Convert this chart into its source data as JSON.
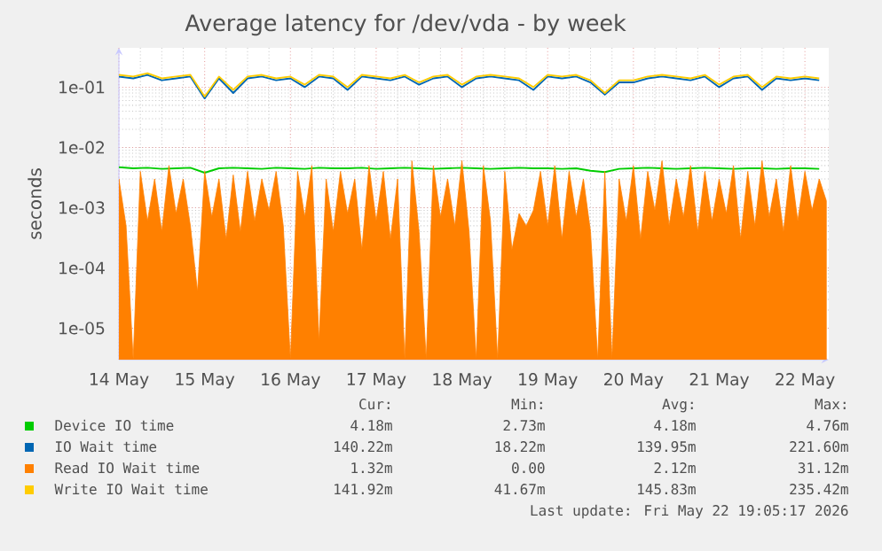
{
  "chart_data": {
    "type": "line",
    "title": "Average latency for /dev/vda - by week",
    "ylabel": "seconds",
    "log": "y",
    "grid": true,
    "legend": "bottom",
    "xlim": [
      "2026-05-14",
      "2026-05-22T06:40"
    ],
    "ylim": [
      3e-06,
      0.45
    ],
    "xticks": [
      {
        "value": "2026-05-14",
        "label": "14 May"
      },
      {
        "value": "2026-05-15",
        "label": "15 May"
      },
      {
        "value": "2026-05-16",
        "label": "16 May"
      },
      {
        "value": "2026-05-17",
        "label": "17 May"
      },
      {
        "value": "2026-05-18",
        "label": "18 May"
      },
      {
        "value": "2026-05-19",
        "label": "19 May"
      },
      {
        "value": "2026-05-20",
        "label": "20 May"
      },
      {
        "value": "2026-05-21",
        "label": "21 May"
      },
      {
        "value": "2026-05-22",
        "label": "22 May"
      }
    ],
    "yticks": [
      {
        "value": 1e-05,
        "label": "1e-05"
      },
      {
        "value": 0.0001,
        "label": "1e-04"
      },
      {
        "value": 0.001,
        "label": "1e-03"
      },
      {
        "value": 0.01,
        "label": "1e-02"
      },
      {
        "value": 0.1,
        "label": "1e-01"
      }
    ],
    "series": [
      {
        "name": "Device IO time",
        "color": "#00cc00",
        "x": [
          "2026-05-14T00:00",
          "2026-05-14T04:00",
          "2026-05-14T08:00",
          "2026-05-14T12:00",
          "2026-05-14T16:00",
          "2026-05-14T20:00",
          "2026-05-15T00:00",
          "2026-05-15T04:00",
          "2026-05-15T08:00",
          "2026-05-15T12:00",
          "2026-05-15T16:00",
          "2026-05-15T20:00",
          "2026-05-16T00:00",
          "2026-05-16T04:00",
          "2026-05-16T08:00",
          "2026-05-16T12:00",
          "2026-05-16T16:00",
          "2026-05-16T20:00",
          "2026-05-17T00:00",
          "2026-05-17T04:00",
          "2026-05-17T08:00",
          "2026-05-17T12:00",
          "2026-05-17T16:00",
          "2026-05-17T20:00",
          "2026-05-18T00:00",
          "2026-05-18T04:00",
          "2026-05-18T08:00",
          "2026-05-18T12:00",
          "2026-05-18T16:00",
          "2026-05-18T20:00",
          "2026-05-19T00:00",
          "2026-05-19T04:00",
          "2026-05-19T08:00",
          "2026-05-19T12:00",
          "2026-05-19T16:00",
          "2026-05-19T20:00",
          "2026-05-20T00:00",
          "2026-05-20T04:00",
          "2026-05-20T08:00",
          "2026-05-20T12:00",
          "2026-05-20T16:00",
          "2026-05-20T20:00",
          "2026-05-21T00:00",
          "2026-05-21T04:00",
          "2026-05-21T08:00",
          "2026-05-21T12:00",
          "2026-05-21T16:00",
          "2026-05-21T20:00",
          "2026-05-22T00:00",
          "2026-05-22T04:00"
        ],
        "values": [
          0.0047,
          0.0045,
          0.0046,
          0.0044,
          0.0045,
          0.0046,
          0.0038,
          0.0045,
          0.0046,
          0.0045,
          0.0044,
          0.0046,
          0.0045,
          0.0044,
          0.0046,
          0.0045,
          0.0045,
          0.0046,
          0.0044,
          0.0045,
          0.0046,
          0.0045,
          0.0044,
          0.0045,
          0.0046,
          0.0045,
          0.0044,
          0.0045,
          0.0046,
          0.0045,
          0.0045,
          0.0044,
          0.0045,
          0.0041,
          0.0039,
          0.0044,
          0.0045,
          0.0046,
          0.0045,
          0.0044,
          0.0045,
          0.0046,
          0.0045,
          0.0044,
          0.0045,
          0.0045,
          0.0044,
          0.0045,
          0.0045,
          0.0044
        ]
      },
      {
        "name": "IO Wait time",
        "color": "#0066b3",
        "x": [
          "2026-05-14T00:00",
          "2026-05-14T04:00",
          "2026-05-14T08:00",
          "2026-05-14T12:00",
          "2026-05-14T16:00",
          "2026-05-14T20:00",
          "2026-05-15T00:00",
          "2026-05-15T04:00",
          "2026-05-15T08:00",
          "2026-05-15T12:00",
          "2026-05-15T16:00",
          "2026-05-15T20:00",
          "2026-05-16T00:00",
          "2026-05-16T04:00",
          "2026-05-16T08:00",
          "2026-05-16T12:00",
          "2026-05-16T16:00",
          "2026-05-16T20:00",
          "2026-05-17T00:00",
          "2026-05-17T04:00",
          "2026-05-17T08:00",
          "2026-05-17T12:00",
          "2026-05-17T16:00",
          "2026-05-17T20:00",
          "2026-05-18T00:00",
          "2026-05-18T04:00",
          "2026-05-18T08:00",
          "2026-05-18T12:00",
          "2026-05-18T16:00",
          "2026-05-18T20:00",
          "2026-05-19T00:00",
          "2026-05-19T04:00",
          "2026-05-19T08:00",
          "2026-05-19T12:00",
          "2026-05-19T16:00",
          "2026-05-19T20:00",
          "2026-05-20T00:00",
          "2026-05-20T04:00",
          "2026-05-20T08:00",
          "2026-05-20T12:00",
          "2026-05-20T16:00",
          "2026-05-20T20:00",
          "2026-05-21T00:00",
          "2026-05-21T04:00",
          "2026-05-21T08:00",
          "2026-05-21T12:00",
          "2026-05-21T16:00",
          "2026-05-21T20:00",
          "2026-05-22T00:00",
          "2026-05-22T04:00"
        ],
        "values": [
          0.15,
          0.14,
          0.16,
          0.13,
          0.14,
          0.15,
          0.065,
          0.14,
          0.08,
          0.14,
          0.15,
          0.13,
          0.14,
          0.1,
          0.15,
          0.14,
          0.09,
          0.15,
          0.14,
          0.13,
          0.15,
          0.11,
          0.14,
          0.15,
          0.1,
          0.14,
          0.15,
          0.14,
          0.13,
          0.09,
          0.15,
          0.14,
          0.15,
          0.12,
          0.075,
          0.12,
          0.12,
          0.14,
          0.15,
          0.14,
          0.13,
          0.15,
          0.1,
          0.14,
          0.15,
          0.09,
          0.14,
          0.13,
          0.14,
          0.13
        ]
      },
      {
        "name": "Read IO Wait time",
        "color": "#ff8000",
        "type": "area",
        "x": [
          "2026-05-14T00:00",
          "2026-05-14T02:00",
          "2026-05-14T04:00",
          "2026-05-14T06:00",
          "2026-05-14T08:00",
          "2026-05-14T10:00",
          "2026-05-14T12:00",
          "2026-05-14T14:00",
          "2026-05-14T16:00",
          "2026-05-14T18:00",
          "2026-05-14T20:00",
          "2026-05-14T22:00",
          "2026-05-15T00:00",
          "2026-05-15T02:00",
          "2026-05-15T04:00",
          "2026-05-15T06:00",
          "2026-05-15T08:00",
          "2026-05-15T10:00",
          "2026-05-15T12:00",
          "2026-05-15T14:00",
          "2026-05-15T16:00",
          "2026-05-15T18:00",
          "2026-05-15T20:00",
          "2026-05-15T22:00",
          "2026-05-16T00:00",
          "2026-05-16T02:00",
          "2026-05-16T04:00",
          "2026-05-16T06:00",
          "2026-05-16T08:00",
          "2026-05-16T10:00",
          "2026-05-16T12:00",
          "2026-05-16T14:00",
          "2026-05-16T16:00",
          "2026-05-16T18:00",
          "2026-05-16T20:00",
          "2026-05-16T22:00",
          "2026-05-17T00:00",
          "2026-05-17T02:00",
          "2026-05-17T04:00",
          "2026-05-17T06:00",
          "2026-05-17T08:00",
          "2026-05-17T10:00",
          "2026-05-17T12:00",
          "2026-05-17T14:00",
          "2026-05-17T16:00",
          "2026-05-17T18:00",
          "2026-05-17T20:00",
          "2026-05-17T22:00",
          "2026-05-18T00:00",
          "2026-05-18T02:00",
          "2026-05-18T04:00",
          "2026-05-18T06:00",
          "2026-05-18T08:00",
          "2026-05-18T10:00",
          "2026-05-18T12:00",
          "2026-05-18T14:00",
          "2026-05-18T16:00",
          "2026-05-18T18:00",
          "2026-05-18T20:00",
          "2026-05-18T22:00",
          "2026-05-19T00:00",
          "2026-05-19T02:00",
          "2026-05-19T04:00",
          "2026-05-19T06:00",
          "2026-05-19T08:00",
          "2026-05-19T10:00",
          "2026-05-19T12:00",
          "2026-05-19T14:00",
          "2026-05-19T16:00",
          "2026-05-19T18:00",
          "2026-05-19T20:00",
          "2026-05-19T22:00",
          "2026-05-20T00:00",
          "2026-05-20T02:00",
          "2026-05-20T04:00",
          "2026-05-20T06:00",
          "2026-05-20T08:00",
          "2026-05-20T10:00",
          "2026-05-20T12:00",
          "2026-05-20T14:00",
          "2026-05-20T16:00",
          "2026-05-20T18:00",
          "2026-05-20T20:00",
          "2026-05-20T22:00",
          "2026-05-21T00:00",
          "2026-05-21T02:00",
          "2026-05-21T04:00",
          "2026-05-21T06:00",
          "2026-05-21T08:00",
          "2026-05-21T10:00",
          "2026-05-21T12:00",
          "2026-05-21T14:00",
          "2026-05-21T16:00",
          "2026-05-21T18:00",
          "2026-05-21T20:00",
          "2026-05-21T22:00",
          "2026-05-22T00:00",
          "2026-05-22T02:00",
          "2026-05-22T04:00",
          "2026-05-22T06:00"
        ],
        "values": [
          0.003,
          0.0005,
          null,
          0.004,
          0.0006,
          0.003,
          0.0004,
          0.005,
          0.0008,
          0.003,
          0.0005,
          4e-05,
          0.004,
          0.0007,
          0.003,
          0.0003,
          0.0035,
          0.0004,
          0.004,
          0.0006,
          0.003,
          0.0009,
          0.004,
          0.0005,
          null,
          0.004,
          0.0007,
          0.005,
          6e-06,
          0.003,
          0.0004,
          0.004,
          0.0008,
          0.003,
          0.0002,
          0.005,
          0.0006,
          0.004,
          0.0003,
          0.003,
          null,
          0.006,
          0.0004,
          null,
          0.005,
          0.0007,
          0.003,
          0.0005,
          0.006,
          0.0004,
          null,
          0.005,
          0.0006,
          null,
          0.004,
          0.0002,
          0.0008,
          0.0005,
          0.0009,
          0.004,
          0.0005,
          0.005,
          0.0003,
          0.004,
          0.0007,
          0.003,
          0.0004,
          null,
          0.004,
          null,
          0.003,
          0.0006,
          0.005,
          0.0003,
          0.004,
          0.0009,
          0.006,
          0.0005,
          0.003,
          0.0007,
          0.005,
          0.0004,
          0.004,
          0.0006,
          0.003,
          0.0008,
          0.005,
          0.0003,
          0.004,
          0.0005,
          0.006,
          0.0007,
          0.003,
          0.0004,
          0.005,
          0.0006,
          0.004,
          0.0009,
          0.003,
          0.0013
        ]
      },
      {
        "name": "Write IO Wait time",
        "color": "#ffcc00",
        "x": [
          "2026-05-14T00:00",
          "2026-05-14T04:00",
          "2026-05-14T08:00",
          "2026-05-14T12:00",
          "2026-05-14T16:00",
          "2026-05-14T20:00",
          "2026-05-15T00:00",
          "2026-05-15T04:00",
          "2026-05-15T08:00",
          "2026-05-15T12:00",
          "2026-05-15T16:00",
          "2026-05-15T20:00",
          "2026-05-16T00:00",
          "2026-05-16T04:00",
          "2026-05-16T08:00",
          "2026-05-16T12:00",
          "2026-05-16T16:00",
          "2026-05-16T20:00",
          "2026-05-17T00:00",
          "2026-05-17T04:00",
          "2026-05-17T08:00",
          "2026-05-17T12:00",
          "2026-05-17T16:00",
          "2026-05-17T20:00",
          "2026-05-18T00:00",
          "2026-05-18T04:00",
          "2026-05-18T08:00",
          "2026-05-18T12:00",
          "2026-05-18T16:00",
          "2026-05-18T20:00",
          "2026-05-19T00:00",
          "2026-05-19T04:00",
          "2026-05-19T08:00",
          "2026-05-19T12:00",
          "2026-05-19T16:00",
          "2026-05-19T20:00",
          "2026-05-20T00:00",
          "2026-05-20T04:00",
          "2026-05-20T08:00",
          "2026-05-20T12:00",
          "2026-05-20T16:00",
          "2026-05-20T20:00",
          "2026-05-21T00:00",
          "2026-05-21T04:00",
          "2026-05-21T08:00",
          "2026-05-21T12:00",
          "2026-05-21T16:00",
          "2026-05-21T20:00",
          "2026-05-22T00:00",
          "2026-05-22T04:00"
        ],
        "values": [
          0.16,
          0.15,
          0.17,
          0.14,
          0.15,
          0.16,
          0.07,
          0.15,
          0.09,
          0.15,
          0.16,
          0.14,
          0.15,
          0.11,
          0.16,
          0.15,
          0.1,
          0.16,
          0.15,
          0.14,
          0.16,
          0.12,
          0.15,
          0.16,
          0.11,
          0.15,
          0.16,
          0.15,
          0.14,
          0.1,
          0.16,
          0.15,
          0.16,
          0.13,
          0.08,
          0.13,
          0.13,
          0.15,
          0.16,
          0.15,
          0.14,
          0.16,
          0.11,
          0.15,
          0.16,
          0.1,
          0.15,
          0.14,
          0.15,
          0.14
        ]
      }
    ],
    "annotations": [
      "Cur:",
      "Min:",
      "Avg:",
      "Max:",
      "4.18m",
      "2.73m",
      "4.18m",
      "4.76m",
      "140.22m",
      "18.22m",
      "139.95m",
      "221.60m",
      "1.32m",
      "0.00",
      "2.12m",
      "31.12m",
      "141.92m",
      "41.67m",
      "145.83m",
      "235.42m",
      "Last update: Fri May 22 19:05:17 2026"
    ]
  }
}
